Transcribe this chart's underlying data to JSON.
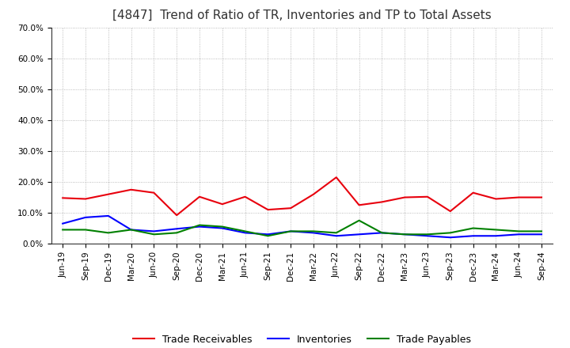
{
  "title": "[4847]  Trend of Ratio of TR, Inventories and TP to Total Assets",
  "x_labels": [
    "Jun-19",
    "Sep-19",
    "Dec-19",
    "Mar-20",
    "Jun-20",
    "Sep-20",
    "Dec-20",
    "Mar-21",
    "Jun-21",
    "Sep-21",
    "Dec-21",
    "Mar-22",
    "Jun-22",
    "Sep-22",
    "Dec-22",
    "Mar-23",
    "Jun-23",
    "Sep-23",
    "Dec-23",
    "Mar-24",
    "Jun-24",
    "Sep-24"
  ],
  "trade_receivables": [
    14.8,
    14.5,
    16.0,
    17.5,
    16.5,
    9.2,
    15.2,
    12.8,
    15.2,
    11.0,
    11.5,
    16.0,
    21.5,
    12.5,
    13.5,
    15.0,
    15.2,
    10.5,
    16.5,
    14.5,
    15.0,
    15.0
  ],
  "inventories": [
    6.5,
    8.5,
    9.0,
    4.5,
    4.0,
    4.8,
    5.5,
    5.0,
    3.5,
    3.0,
    4.0,
    3.5,
    2.5,
    3.0,
    3.5,
    3.0,
    2.5,
    2.0,
    2.5,
    2.5,
    3.0,
    3.0
  ],
  "trade_payables": [
    4.5,
    4.5,
    3.5,
    4.5,
    3.0,
    3.5,
    6.0,
    5.5,
    4.0,
    2.5,
    4.0,
    4.0,
    3.5,
    7.5,
    3.5,
    3.0,
    3.0,
    3.5,
    5.0,
    4.5,
    4.0,
    4.0
  ],
  "ylim": [
    0,
    70
  ],
  "yticks": [
    0,
    10,
    20,
    30,
    40,
    50,
    60,
    70
  ],
  "ytick_labels": [
    "0.0%",
    "10.0%",
    "20.0%",
    "30.0%",
    "40.0%",
    "50.0%",
    "60.0%",
    "70.0%"
  ],
  "color_tr": "#e8000d",
  "color_inv": "#0000ff",
  "color_tp": "#008000",
  "legend_labels": [
    "Trade Receivables",
    "Inventories",
    "Trade Payables"
  ],
  "background_color": "#ffffff",
  "plot_bg_color": "#ffffff",
  "grid_color": "#aaaaaa",
  "title_fontsize": 11,
  "tick_fontsize": 7.5,
  "legend_fontsize": 9
}
